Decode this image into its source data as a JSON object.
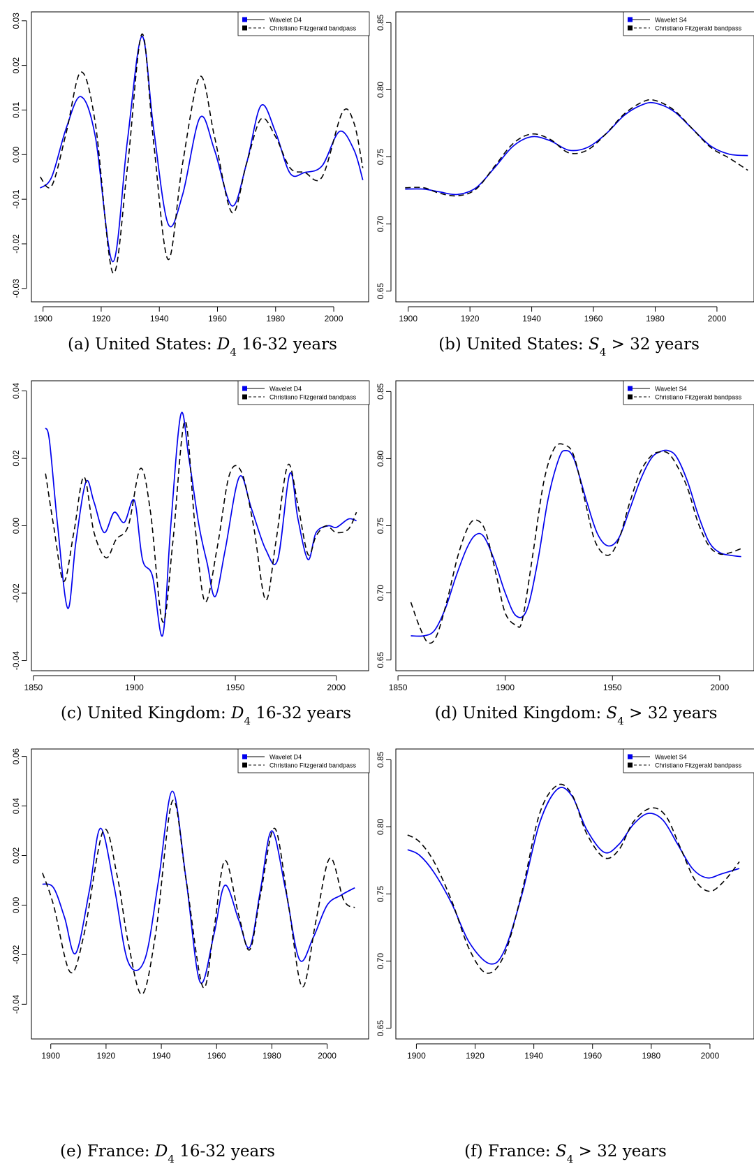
{
  "chart_data": [
    {
      "id": "a",
      "type": "line",
      "caption": {
        "prefix": "(a)  United States: ",
        "symbol": "D",
        "subscript": "4",
        "suffix": " 16-32 years"
      },
      "xlim": [
        1896,
        2012
      ],
      "ylim": [
        -0.033,
        0.032
      ],
      "xticks": [
        1900,
        1920,
        1940,
        1960,
        1980,
        2000
      ],
      "yticks": [
        -0.03,
        -0.02,
        -0.01,
        0.0,
        0.01,
        0.02,
        0.03
      ],
      "ytick_labels": [
        "-0.03",
        "-0.02",
        "-0.01",
        "0.00",
        "0.01",
        "0.02",
        "0.03"
      ],
      "legend": {
        "position": "top-right",
        "entries": [
          "Wavelet D4",
          "Christiano Fitzgerald bandpass"
        ]
      },
      "series": [
        {
          "name": "Wavelet D4",
          "color": "#0000ee",
          "style": "solid",
          "x": [
            1899,
            1903,
            1908,
            1913,
            1918,
            1924,
            1929,
            1934,
            1938,
            1943,
            1948,
            1954,
            1959,
            1965,
            1970,
            1975,
            1980,
            1985,
            1990,
            1996,
            2002,
            2007,
            2010
          ],
          "y": [
            -0.0075,
            -0.005,
            0.006,
            0.013,
            0.004,
            -0.024,
            0.003,
            0.0265,
            0.006,
            -0.0155,
            -0.009,
            0.0083,
            0.001,
            -0.0115,
            -0.002,
            0.011,
            0.005,
            -0.0042,
            -0.004,
            -0.0025,
            0.0052,
            0.001,
            -0.0057
          ]
        },
        {
          "name": "Christiano Fitzgerald bandpass",
          "color": "#000000",
          "style": "dashed",
          "x": [
            1899,
            1903,
            1908,
            1913,
            1918,
            1924,
            1929,
            1934,
            1938,
            1943,
            1948,
            1954,
            1959,
            1965,
            1970,
            1975,
            1980,
            1985,
            1990,
            1996,
            2003,
            2007,
            2010
          ],
          "y": [
            -0.005,
            -0.007,
            0.005,
            0.0185,
            0.007,
            -0.0265,
            -0.003,
            0.027,
            0.003,
            -0.0235,
            -0.002,
            0.0175,
            0.004,
            -0.013,
            -0.002,
            0.008,
            0.004,
            -0.003,
            -0.004,
            -0.005,
            0.0095,
            0.007,
            -0.003
          ]
        }
      ]
    },
    {
      "id": "b",
      "type": "line",
      "caption": {
        "prefix": "(b)  United States: ",
        "symbol": "S",
        "subscript": "4",
        "suffix": " > 32 years"
      },
      "xlim": [
        1896,
        2012
      ],
      "ylim": [
        0.642,
        0.858
      ],
      "xticks": [
        1900,
        1920,
        1940,
        1960,
        1980,
        2000
      ],
      "yticks": [
        0.65,
        0.7,
        0.75,
        0.8,
        0.85
      ],
      "ytick_labels": [
        "0.65",
        "0.70",
        "0.75",
        "0.80",
        "0.85"
      ],
      "legend": {
        "position": "top-right",
        "entries": [
          "Wavelet S4",
          "Christiano Fitzgerald bandpass"
        ]
      },
      "series": [
        {
          "name": "Wavelet S4",
          "color": "#0000ee",
          "style": "solid",
          "x": [
            1899,
            1905,
            1910,
            1916,
            1922,
            1928,
            1934,
            1940,
            1946,
            1952,
            1958,
            1964,
            1970,
            1976,
            1980,
            1986,
            1992,
            1998,
            2004,
            2010
          ],
          "y": [
            0.726,
            0.726,
            0.724,
            0.722,
            0.727,
            0.742,
            0.758,
            0.765,
            0.762,
            0.755,
            0.757,
            0.767,
            0.781,
            0.789,
            0.79,
            0.784,
            0.771,
            0.758,
            0.752,
            0.751
          ]
        },
        {
          "name": "Christiano Fitzgerald bandpass",
          "color": "#000000",
          "style": "dashed",
          "x": [
            1899,
            1905,
            1910,
            1916,
            1922,
            1928,
            1934,
            1940,
            1946,
            1952,
            1958,
            1964,
            1970,
            1976,
            1980,
            1986,
            1992,
            1998,
            2004,
            2010
          ],
          "y": [
            0.727,
            0.727,
            0.723,
            0.721,
            0.726,
            0.743,
            0.76,
            0.767,
            0.763,
            0.753,
            0.755,
            0.767,
            0.782,
            0.791,
            0.792,
            0.785,
            0.771,
            0.757,
            0.749,
            0.74
          ]
        }
      ]
    },
    {
      "id": "c",
      "type": "line",
      "caption": {
        "prefix": "(c)  United Kingdom: ",
        "symbol": "D",
        "subscript": "4",
        "suffix": " 16-32 years"
      },
      "xlim": [
        1849,
        2016
      ],
      "ylim": [
        -0.043,
        0.043
      ],
      "xticks": [
        1850,
        1900,
        1950,
        2000
      ],
      "yticks": [
        -0.04,
        -0.02,
        0.0,
        0.02,
        0.04
      ],
      "ytick_labels": [
        "-0.04",
        "-0.02",
        "0.00",
        "0.02",
        "0.04"
      ],
      "legend": {
        "position": "top-right",
        "entries": [
          "Wavelet D4",
          "Christiano Fitzgerald bandpass"
        ]
      },
      "series": [
        {
          "name": "Wavelet D4",
          "color": "#0000ee",
          "style": "solid",
          "x": [
            1856,
            1858,
            1862,
            1867,
            1871,
            1876,
            1880,
            1885,
            1890,
            1895,
            1900,
            1904,
            1909,
            1914,
            1918,
            1923,
            1927,
            1932,
            1936,
            1940,
            1945,
            1952,
            1958,
            1965,
            1971,
            1977,
            1981,
            1986,
            1990,
            1996,
            2000,
            2006,
            2010
          ],
          "y": [
            0.029,
            0.025,
            0.0,
            -0.0245,
            -0.005,
            0.013,
            0.007,
            -0.002,
            0.004,
            0.001,
            0.0075,
            -0.01,
            -0.015,
            -0.0325,
            0.0,
            0.033,
            0.02,
            0.0,
            -0.011,
            -0.021,
            -0.007,
            0.0145,
            0.005,
            -0.007,
            -0.01,
            0.0155,
            0.002,
            -0.01,
            -0.002,
            0.0,
            -0.0005,
            0.002,
            0.0015
          ]
        },
        {
          "name": "Christiano Fitzgerald bandpass",
          "color": "#000000",
          "style": "dashed",
          "x": [
            1856,
            1860,
            1865,
            1870,
            1875,
            1880,
            1886,
            1891,
            1897,
            1903,
            1908,
            1914,
            1919,
            1925,
            1930,
            1935,
            1941,
            1947,
            1953,
            1959,
            1965,
            1970,
            1976,
            1981,
            1986,
            1990,
            1995,
            2000,
            2006,
            2010
          ],
          "y": [
            0.0155,
            0.0,
            -0.0165,
            -0.002,
            0.0145,
            -0.002,
            -0.0095,
            -0.004,
            0.0,
            0.017,
            0.004,
            -0.0285,
            -0.005,
            0.031,
            0.0,
            -0.0225,
            -0.0065,
            0.015,
            0.016,
            0.0,
            -0.022,
            -0.005,
            0.018,
            0.006,
            -0.0085,
            -0.003,
            0.0,
            -0.002,
            -0.001,
            0.004
          ]
        }
      ]
    },
    {
      "id": "d",
      "type": "line",
      "caption": {
        "prefix": "(d)  United Kingdom: ",
        "symbol": "S",
        "subscript": "4",
        "suffix": " > 32 years"
      },
      "xlim": [
        1849,
        2016
      ],
      "ylim": [
        0.642,
        0.858
      ],
      "xticks": [
        1850,
        1900,
        1950,
        2000
      ],
      "yticks": [
        0.65,
        0.7,
        0.75,
        0.8,
        0.85
      ],
      "ytick_labels": [
        "0.65",
        "0.70",
        "0.75",
        "0.80",
        "0.85"
      ],
      "legend": {
        "position": "top-right",
        "entries": [
          "Wavelet S4",
          "Christiano Fitzgerald bandpass"
        ]
      },
      "series": [
        {
          "name": "Wavelet S4",
          "color": "#0000ee",
          "style": "solid",
          "x": [
            1856,
            1862,
            1867,
            1872,
            1877,
            1882,
            1886,
            1890,
            1895,
            1900,
            1905,
            1910,
            1915,
            1920,
            1925,
            1928,
            1932,
            1938,
            1943,
            1948,
            1953,
            1958,
            1963,
            1968,
            1972,
            1976,
            1980,
            1985,
            1990,
            1995,
            2000,
            2005,
            2010
          ],
          "y": [
            0.668,
            0.668,
            0.672,
            0.688,
            0.712,
            0.733,
            0.743,
            0.742,
            0.724,
            0.7,
            0.683,
            0.687,
            0.722,
            0.77,
            0.8,
            0.806,
            0.8,
            0.768,
            0.744,
            0.735,
            0.741,
            0.762,
            0.784,
            0.8,
            0.805,
            0.806,
            0.801,
            0.783,
            0.758,
            0.738,
            0.73,
            0.728,
            0.727
          ]
        },
        {
          "name": "Christiano Fitzgerald bandpass",
          "color": "#000000",
          "style": "dashed",
          "x": [
            1856,
            1860,
            1864,
            1868,
            1873,
            1878,
            1883,
            1887,
            1891,
            1896,
            1900,
            1905,
            1908,
            1913,
            1918,
            1923,
            1928,
            1932,
            1937,
            1942,
            1948,
            1953,
            1958,
            1963,
            1968,
            1972,
            1976,
            1980,
            1985,
            1990,
            1995,
            2000,
            2005,
            2010
          ],
          "y": [
            0.693,
            0.675,
            0.663,
            0.668,
            0.695,
            0.728,
            0.75,
            0.754,
            0.745,
            0.712,
            0.685,
            0.676,
            0.68,
            0.73,
            0.783,
            0.808,
            0.81,
            0.802,
            0.77,
            0.738,
            0.728,
            0.74,
            0.767,
            0.79,
            0.802,
            0.805,
            0.804,
            0.795,
            0.778,
            0.752,
            0.735,
            0.729,
            0.73,
            0.733
          ]
        }
      ]
    },
    {
      "id": "e",
      "type": "line",
      "caption": {
        "prefix": "(e)  France: ",
        "symbol": "D",
        "subscript": "4",
        "suffix": " 16-32 years"
      },
      "xlim": [
        1893,
        2015
      ],
      "ylim": [
        -0.054,
        0.063
      ],
      "xticks": [
        1900,
        1920,
        1940,
        1960,
        1980,
        2000
      ],
      "yticks": [
        -0.04,
        -0.02,
        0.0,
        0.02,
        0.04,
        0.06
      ],
      "ytick_labels": [
        "-0.04",
        "-0.02",
        "0.00",
        "0.02",
        "0.04",
        "0.06"
      ],
      "legend": {
        "position": "top-right",
        "entries": [
          "Wavelet D4",
          "Christiano Fitzgerald bandpass"
        ]
      },
      "series": [
        {
          "name": "Wavelet D4",
          "color": "#0000ee",
          "style": "solid",
          "x": [
            1897,
            1901,
            1905,
            1909,
            1914,
            1918,
            1923,
            1928,
            1934,
            1939,
            1944,
            1949,
            1954,
            1959,
            1963,
            1968,
            1972,
            1976,
            1980,
            1985,
            1990,
            1995,
            2000,
            2005,
            2010
          ],
          "y": [
            0.0085,
            0.007,
            -0.005,
            -0.0195,
            0.006,
            0.031,
            0.007,
            -0.023,
            -0.022,
            0.01,
            0.046,
            0.01,
            -0.031,
            -0.012,
            0.008,
            -0.006,
            -0.017,
            0.007,
            0.03,
            0.006,
            -0.022,
            -0.013,
            0.0,
            0.004,
            0.007
          ]
        },
        {
          "name": "Christiano Fitzgerald bandpass",
          "color": "#000000",
          "style": "dashed",
          "x": [
            1897,
            1901,
            1907,
            1912,
            1919,
            1924,
            1928,
            1933,
            1938,
            1944,
            1949,
            1955,
            1959,
            1963,
            1968,
            1972,
            1976,
            1981,
            1986,
            1991,
            1996,
            2001,
            2006,
            2010
          ],
          "y": [
            0.013,
            0.0,
            -0.027,
            -0.012,
            0.03,
            0.012,
            -0.015,
            -0.036,
            -0.011,
            0.042,
            0.01,
            -0.033,
            -0.01,
            0.018,
            -0.004,
            -0.018,
            0.005,
            0.031,
            0.0,
            -0.033,
            -0.006,
            0.019,
            0.002,
            -0.001
          ]
        }
      ]
    },
    {
      "id": "f",
      "type": "line",
      "caption": {
        "prefix": "(f)  France: ",
        "symbol": "S",
        "subscript": "4",
        "suffix": " > 32 years"
      },
      "xlim": [
        1893,
        2015
      ],
      "ylim": [
        0.642,
        0.858
      ],
      "xticks": [
        1900,
        1920,
        1940,
        1960,
        1980,
        2000
      ],
      "yticks": [
        0.65,
        0.7,
        0.75,
        0.8,
        0.85
      ],
      "ytick_labels": [
        "0.65",
        "0.70",
        "0.75",
        "0.80",
        "0.85"
      ],
      "legend": {
        "position": "top-right",
        "entries": [
          "Wavelet S4",
          "Christiano Fitzgerald bandpass"
        ]
      },
      "series": [
        {
          "name": "Wavelet S4",
          "color": "#0000ee",
          "style": "solid",
          "x": [
            1897,
            1901,
            1906,
            1912,
            1918,
            1925,
            1930,
            1936,
            1942,
            1948,
            1953,
            1958,
            1964,
            1969,
            1974,
            1979,
            1984,
            1989,
            1994,
            1999,
            2004,
            2010
          ],
          "y": [
            0.783,
            0.779,
            0.766,
            0.743,
            0.714,
            0.698,
            0.708,
            0.75,
            0.803,
            0.828,
            0.823,
            0.798,
            0.781,
            0.787,
            0.802,
            0.81,
            0.805,
            0.787,
            0.769,
            0.762,
            0.765,
            0.769
          ]
        },
        {
          "name": "Christiano Fitzgerald bandpass",
          "color": "#000000",
          "style": "dashed",
          "x": [
            1897,
            1901,
            1906,
            1912,
            1918,
            1924,
            1930,
            1936,
            1942,
            1948,
            1953,
            1958,
            1964,
            1969,
            1974,
            1980,
            1985,
            1990,
            1995,
            2000,
            2005,
            2010
          ],
          "y": [
            0.794,
            0.789,
            0.774,
            0.745,
            0.709,
            0.691,
            0.705,
            0.752,
            0.81,
            0.831,
            0.824,
            0.795,
            0.777,
            0.783,
            0.804,
            0.814,
            0.808,
            0.784,
            0.76,
            0.752,
            0.76,
            0.774
          ]
        }
      ]
    }
  ]
}
